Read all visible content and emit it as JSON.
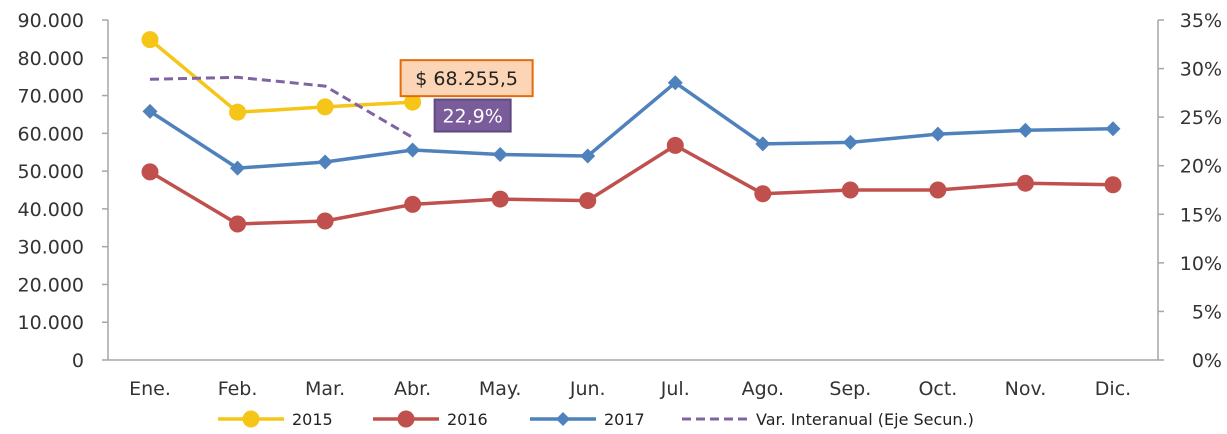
{
  "chart_data": {
    "type": "line",
    "categories": [
      "Ene.",
      "Feb.",
      "Mar.",
      "Abr.",
      "May.",
      "Jun.",
      "Jul.",
      "Ago.",
      "Sep.",
      "Oct.",
      "Nov.",
      "Dic."
    ],
    "y_left": {
      "range": [
        0,
        90000
      ],
      "ticks": [
        "0",
        "10.000",
        "20.000",
        "30.000",
        "40.000",
        "50.000",
        "60.000",
        "70.000",
        "80.000",
        "90.000"
      ]
    },
    "y_right": {
      "range": [
        0,
        35
      ],
      "unit": "%",
      "ticks": [
        "0%",
        "5%",
        "10%",
        "15%",
        "20%",
        "25%",
        "30%",
        "35%"
      ]
    },
    "grid": false,
    "legend_position": "bottom",
    "series": [
      {
        "name": "2015",
        "axis": "left",
        "color": "#F5C518",
        "marker": "circle",
        "values": [
          84800,
          65600,
          67000,
          68255.5,
          null,
          null,
          null,
          null,
          null,
          null,
          null,
          null
        ]
      },
      {
        "name": "2016",
        "axis": "left",
        "color": "#C0504D",
        "marker": "circle",
        "values": [
          49800,
          36000,
          36800,
          41200,
          42600,
          42200,
          56800,
          44000,
          45000,
          45000,
          46800,
          46400
        ]
      },
      {
        "name": "2017",
        "axis": "left",
        "color": "#4F81BD",
        "marker": "diamond",
        "values": [
          65800,
          50800,
          52400,
          55600,
          54400,
          54000,
          73400,
          57200,
          57600,
          59800,
          60800,
          61200
        ]
      },
      {
        "name": "Var. Interanual (Eje Secun.)",
        "axis": "right",
        "color": "#8064A2",
        "style": "dashed",
        "values": [
          28.9,
          29.1,
          28.2,
          22.9,
          null,
          null,
          null,
          null,
          null,
          null,
          null,
          null
        ]
      }
    ],
    "annotations": [
      {
        "text": "$ 68.255,5",
        "series": "2015",
        "category": "Abr.",
        "bg": "#FBD5B5",
        "border": "#E36C09",
        "text_color": "#222222"
      },
      {
        "text": "22,9%",
        "series": "Var. Interanual (Eje Secun.)",
        "category": "Abr.",
        "bg": "#7A5C9A",
        "border": "#5F4A80",
        "text_color": "#ffffff"
      }
    ]
  }
}
